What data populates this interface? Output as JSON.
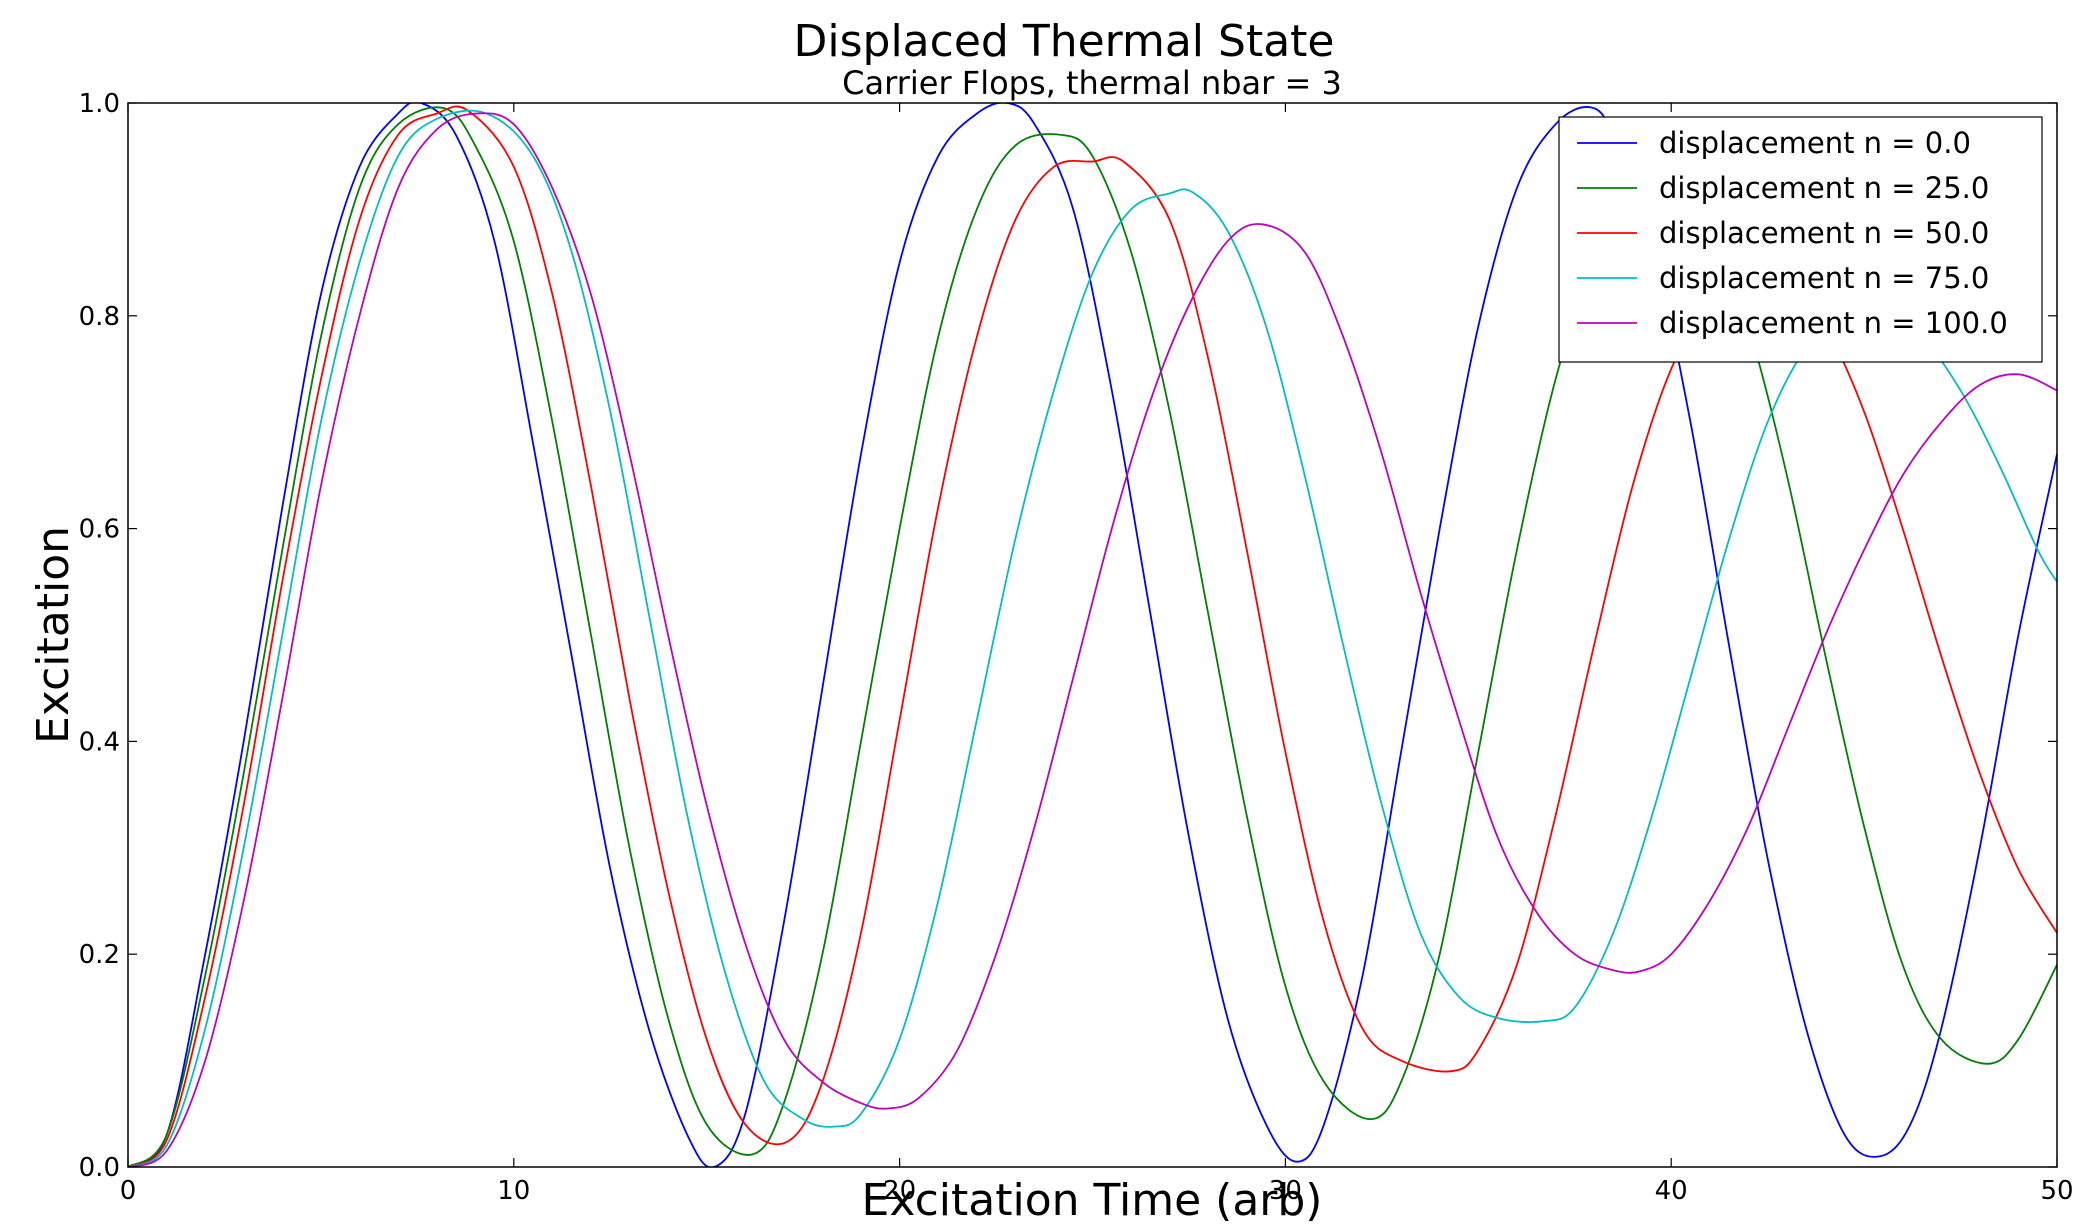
{
  "chart_data": {
    "type": "line",
    "title": "Displaced Thermal State",
    "subtitle": "Carrier Flops, thermal nbar = 3",
    "xlabel": "Excitation Time (arb)",
    "ylabel": "Excitation",
    "xlim": [
      0,
      50
    ],
    "ylim": [
      0,
      1.0
    ],
    "xticks": [
      0,
      10,
      20,
      30,
      40,
      50
    ],
    "xtick_labels": [
      "0",
      "10",
      "20",
      "30",
      "40",
      "50"
    ],
    "yticks": [
      0,
      0.2,
      0.4,
      0.6,
      0.8,
      1.0
    ],
    "ytick_labels": [
      "0.0",
      "0.2",
      "0.4",
      "0.6",
      "0.8",
      "1.0"
    ],
    "grid": false,
    "legend_position": "top-right",
    "series": [
      {
        "name": "displacement n = 0.0",
        "color": "#0000ff",
        "x": [
          0,
          1,
          2,
          3,
          4,
          5,
          6,
          7,
          7.6,
          8.5,
          9.5,
          10.5,
          11.5,
          12.5,
          13.5,
          14.5,
          15.2,
          16,
          17,
          18,
          19,
          20,
          21,
          22,
          22.8,
          23.5,
          24.5,
          25.5,
          26.5,
          27.5,
          28.5,
          29.5,
          30.3,
          31,
          32,
          33,
          34,
          35,
          36,
          37,
          37.9,
          38.5,
          39.5,
          40.5,
          41.5,
          42.5,
          43.5,
          44.5,
          45.4,
          46.2,
          47,
          48,
          49,
          50
        ],
        "y": [
          0,
          0.03,
          0.2,
          0.4,
          0.62,
          0.82,
          0.94,
          0.99,
          1.0,
          0.97,
          0.87,
          0.68,
          0.48,
          0.28,
          0.13,
          0.03,
          0.0,
          0.05,
          0.23,
          0.45,
          0.67,
          0.85,
          0.95,
          0.99,
          1.0,
          0.98,
          0.9,
          0.73,
          0.52,
          0.31,
          0.14,
          0.04,
          0.005,
          0.04,
          0.18,
          0.39,
          0.6,
          0.79,
          0.92,
          0.98,
          0.996,
          0.97,
          0.87,
          0.7,
          0.49,
          0.29,
          0.13,
          0.03,
          0.01,
          0.04,
          0.13,
          0.3,
          0.5,
          0.67
        ]
      },
      {
        "name": "displacement n = 25.0",
        "color": "#008000",
        "x": [
          0,
          1,
          2,
          3,
          4,
          5,
          6,
          7,
          8.2,
          9,
          10,
          11,
          12,
          13,
          14,
          15,
          16.2,
          17,
          18,
          19,
          20,
          21,
          22,
          23,
          24.2,
          25,
          26,
          27,
          28,
          29,
          30,
          31,
          32.2,
          33,
          34,
          35,
          36,
          37,
          38,
          39,
          40.2,
          41,
          42,
          43,
          44,
          45,
          46,
          47,
          48.2,
          49,
          50
        ],
        "y": [
          0,
          0.03,
          0.18,
          0.37,
          0.58,
          0.78,
          0.92,
          0.98,
          0.995,
          0.96,
          0.87,
          0.7,
          0.5,
          0.3,
          0.14,
          0.04,
          0.012,
          0.06,
          0.2,
          0.4,
          0.6,
          0.78,
          0.9,
          0.96,
          0.97,
          0.95,
          0.86,
          0.71,
          0.52,
          0.33,
          0.17,
          0.08,
          0.045,
          0.08,
          0.2,
          0.39,
          0.58,
          0.74,
          0.85,
          0.9,
          0.91,
          0.88,
          0.79,
          0.65,
          0.48,
          0.32,
          0.19,
          0.12,
          0.097,
          0.12,
          0.19
        ]
      },
      {
        "name": "displacement n = 50.0",
        "color": "#ff0000",
        "x": [
          0,
          1,
          2,
          3,
          4,
          5,
          6,
          7,
          8,
          8.8,
          10,
          11,
          12,
          13,
          14,
          15,
          16,
          17.1,
          18,
          19,
          20,
          21,
          22,
          23,
          24,
          25,
          25.8,
          27,
          28,
          29,
          30,
          31,
          32,
          33,
          34.3,
          35,
          36,
          37,
          38,
          39,
          40,
          41,
          42,
          43.2,
          44,
          45,
          46,
          47,
          48,
          49,
          50
        ],
        "y": [
          0,
          0.025,
          0.16,
          0.34,
          0.55,
          0.74,
          0.89,
          0.97,
          0.99,
          0.993,
          0.94,
          0.82,
          0.64,
          0.44,
          0.26,
          0.12,
          0.04,
          0.024,
          0.08,
          0.22,
          0.42,
          0.62,
          0.78,
          0.89,
          0.94,
          0.945,
          0.945,
          0.89,
          0.76,
          0.58,
          0.39,
          0.23,
          0.13,
          0.1,
          0.09,
          0.11,
          0.19,
          0.33,
          0.49,
          0.64,
          0.75,
          0.81,
          0.82,
          0.825,
          0.79,
          0.71,
          0.6,
          0.48,
          0.37,
          0.28,
          0.22
        ]
      },
      {
        "name": "displacement n = 75.0",
        "color": "#00bfbf",
        "x": [
          0,
          1,
          2,
          3,
          4,
          5,
          6,
          7,
          8,
          9.3,
          10.5,
          11.5,
          12.5,
          13.5,
          14.5,
          15.5,
          16.5,
          17.5,
          18.3,
          19,
          20,
          21,
          22,
          23,
          24,
          25,
          26,
          27,
          27.6,
          28.5,
          29.5,
          30.5,
          31.5,
          32.5,
          33.5,
          34.5,
          35.5,
          36.7,
          37.5,
          38.5,
          39.5,
          40.5,
          41.5,
          42.5,
          43.5,
          44.5,
          45.5,
          46.5,
          47.5,
          48.5,
          49.5,
          50
        ],
        "y": [
          0,
          0.02,
          0.13,
          0.3,
          0.5,
          0.7,
          0.85,
          0.95,
          0.985,
          0.99,
          0.95,
          0.86,
          0.71,
          0.52,
          0.33,
          0.18,
          0.08,
          0.045,
          0.038,
          0.05,
          0.12,
          0.25,
          0.42,
          0.59,
          0.73,
          0.84,
          0.9,
          0.915,
          0.916,
          0.88,
          0.79,
          0.65,
          0.49,
          0.34,
          0.22,
          0.16,
          0.14,
          0.137,
          0.15,
          0.22,
          0.33,
          0.46,
          0.59,
          0.7,
          0.77,
          0.8,
          0.8,
          0.78,
          0.73,
          0.66,
          0.58,
          0.55
        ]
      },
      {
        "name": "displacement n = 100.0",
        "color": "#bf00bf",
        "x": [
          0,
          1,
          2,
          3,
          4,
          5,
          6,
          7,
          8,
          9,
          10,
          11,
          12,
          13,
          14,
          15,
          16,
          17,
          18,
          19,
          19.7,
          20.5,
          21.5,
          22.5,
          23.5,
          24.5,
          25.5,
          26.5,
          27.5,
          28.5,
          29.4,
          30.5,
          31.5,
          32.5,
          33.5,
          34.5,
          35.5,
          36.5,
          37.5,
          38.5,
          39.2,
          40,
          41,
          42,
          43,
          44,
          45,
          46,
          47,
          48,
          49,
          50
        ],
        "y": [
          0,
          0.015,
          0.1,
          0.25,
          0.44,
          0.64,
          0.8,
          0.92,
          0.975,
          0.99,
          0.98,
          0.92,
          0.82,
          0.67,
          0.5,
          0.34,
          0.21,
          0.12,
          0.08,
          0.06,
          0.055,
          0.065,
          0.11,
          0.2,
          0.32,
          0.46,
          0.6,
          0.72,
          0.81,
          0.87,
          0.886,
          0.86,
          0.78,
          0.67,
          0.54,
          0.42,
          0.31,
          0.24,
          0.2,
          0.185,
          0.184,
          0.2,
          0.25,
          0.32,
          0.41,
          0.5,
          0.58,
          0.65,
          0.7,
          0.735,
          0.745,
          0.73
        ]
      }
    ]
  }
}
